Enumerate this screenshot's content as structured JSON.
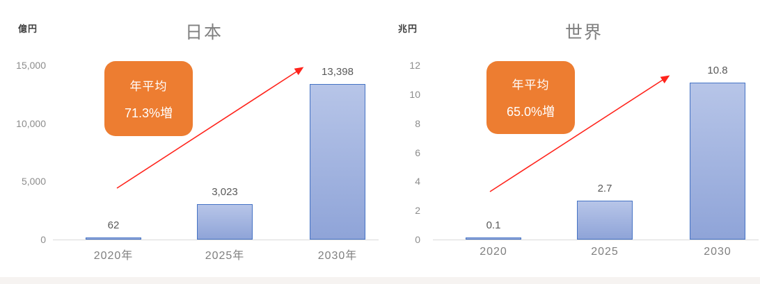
{
  "colors": {
    "accent_orange": "#ED7D31",
    "bar_fill_top": "#b7c5e8",
    "bar_fill_bottom": "#8fa4d8",
    "bar_border": "#4472C4",
    "arrow_red": "#ff241c",
    "title_gray": "#7f7f7f",
    "cat_gray": "#7f7f7f",
    "tick_gray": "#8c8c8c",
    "label_gray": "#595959",
    "axis_line": "#d9d9d9",
    "callout_text": "#ffffff",
    "footer_strip": "#f6f3f1"
  },
  "chart_data": [
    {
      "type": "bar",
      "title": "日本",
      "unit_label": "億円",
      "categories": [
        "2020年",
        "2025年",
        "2030年"
      ],
      "values": [
        62,
        3023,
        13398
      ],
      "value_labels": [
        "62",
        "3,023",
        "13,398"
      ],
      "ylim": [
        0,
        15000
      ],
      "yticks": [
        0,
        5000,
        10000,
        15000
      ],
      "ytick_labels": [
        "0",
        "5,000",
        "10,000",
        "15,000"
      ],
      "grid": false,
      "legend": "none",
      "annotation": {
        "line1": "年平均",
        "line2": "71.3%増",
        "shape": "rounded-rectangle",
        "arrow": "red-diagonal-up"
      }
    },
    {
      "type": "bar",
      "title": "世界",
      "unit_label": "兆円",
      "categories": [
        "2020",
        "2025",
        "2030"
      ],
      "values": [
        0.1,
        2.7,
        10.8
      ],
      "value_labels": [
        "0.1",
        "2.7",
        "10.8"
      ],
      "ylim": [
        0,
        12
      ],
      "yticks": [
        0,
        2,
        4,
        6,
        8,
        10,
        12
      ],
      "ytick_labels": [
        "0",
        "2",
        "4",
        "6",
        "8",
        "10",
        "12"
      ],
      "grid": false,
      "legend": "none",
      "annotation": {
        "line1": "年平均",
        "line2": "65.0%増",
        "shape": "rounded-rectangle",
        "arrow": "red-diagonal-up"
      }
    }
  ]
}
